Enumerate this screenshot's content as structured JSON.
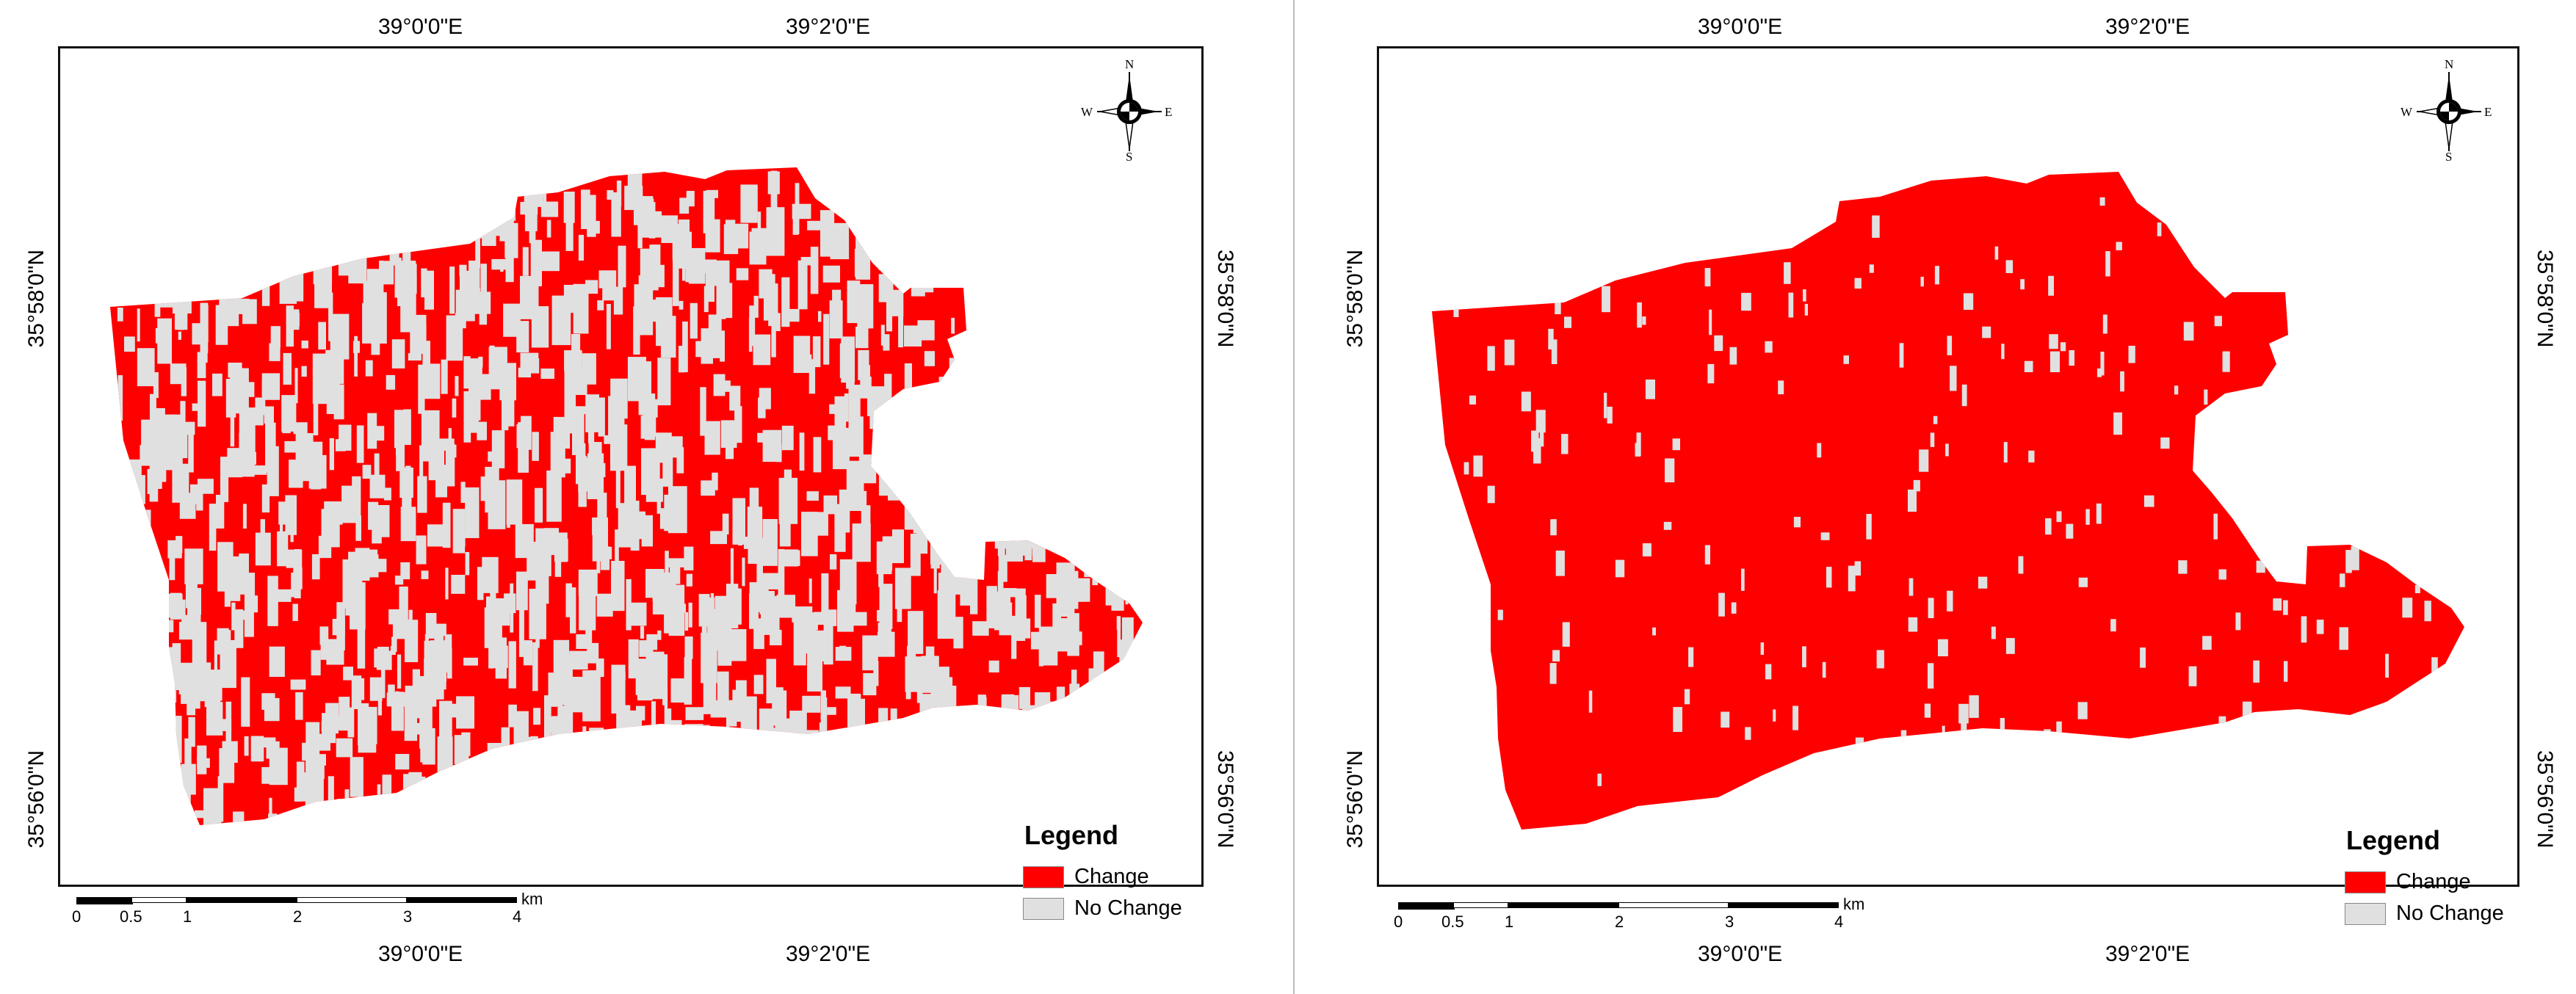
{
  "colors": {
    "change": "#ff0000",
    "no_change": "#e0e0e0",
    "frame": "#111111"
  },
  "coords": {
    "lon_left": "39°0'0\"E",
    "lon_right": "39°2'0\"E",
    "lat_top": "35°58'0\"N",
    "lat_bottom": "35°56'0\"N"
  },
  "compass": {
    "n": "N",
    "s": "S",
    "e": "E",
    "w": "W",
    "icon": "compass-rose-icon"
  },
  "legend": {
    "title": "Legend",
    "items": [
      {
        "label": "Change",
        "color": "#ff0000"
      },
      {
        "label": "No Change",
        "color": "#e0e0e0"
      }
    ]
  },
  "scalebar": {
    "unit": "km",
    "ticks": [
      "0",
      "0.5",
      "1",
      "2",
      "3",
      "4"
    ]
  },
  "maps": [
    {
      "id": "left",
      "no_change_share": 0.45
    },
    {
      "id": "right",
      "no_change_share": 0.08
    }
  ]
}
